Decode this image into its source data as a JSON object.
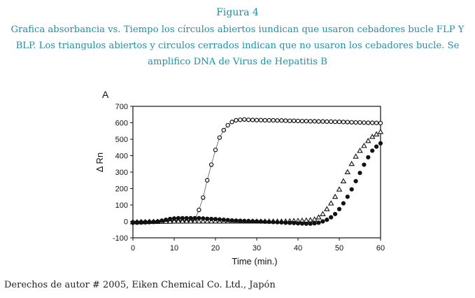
{
  "caption": {
    "figure_label": "Figura 4",
    "description": "Grafica absorbancia vs. Tiempo los círculos abiertos iundican que usaron cebadores bucle FLP Y BLP. Los triangulos abiertos y circulos cerrados indican que no usaron los cebadores bucle. Se amplifico DNA de Virus de Hepatitis B"
  },
  "copyright": "Derechos de autor # 2005, Eiken Chemical Co. Ltd., Japón",
  "chart_data": {
    "type": "scatter",
    "panel_label": "A",
    "title": "",
    "xlabel": "Time (min.)",
    "ylabel": "Δ Rn",
    "xlim": [
      0,
      60
    ],
    "ylim": [
      -100,
      700
    ],
    "xticks": [
      0,
      10,
      20,
      30,
      40,
      50,
      60
    ],
    "yticks": [
      -100,
      0,
      100,
      200,
      300,
      400,
      500,
      600,
      700
    ],
    "grid": false,
    "legend": "none",
    "series": [
      {
        "marker": "open-circle",
        "line": true,
        "x": [
          0,
          1,
          2,
          3,
          4,
          5,
          6,
          7,
          8,
          9,
          10,
          11,
          12,
          13,
          14,
          15,
          16,
          17,
          18,
          19,
          20,
          21,
          22,
          23,
          24,
          25,
          26,
          27,
          28,
          29,
          30,
          31,
          32,
          33,
          34,
          35,
          36,
          37,
          38,
          39,
          40,
          41,
          42,
          43,
          44,
          45,
          46,
          47,
          48,
          49,
          50,
          51,
          52,
          53,
          54,
          55,
          56,
          57,
          58,
          59,
          60
        ],
        "y": [
          -5,
          -5,
          -4,
          -4,
          -3,
          -3,
          -2,
          -1,
          0,
          0,
          0,
          0,
          0,
          0,
          2,
          10,
          70,
          145,
          250,
          345,
          435,
          510,
          555,
          585,
          605,
          615,
          618,
          620,
          618,
          617,
          616,
          616,
          615,
          615,
          615,
          614,
          614,
          613,
          612,
          612,
          611,
          610,
          610,
          609,
          609,
          608,
          608,
          607,
          607,
          606,
          606,
          605,
          604,
          603,
          602,
          602,
          601,
          600,
          600,
          599,
          598
        ]
      },
      {
        "marker": "open-triangle",
        "line": false,
        "x": [
          0,
          1,
          2,
          3,
          4,
          5,
          6,
          7,
          8,
          9,
          10,
          11,
          12,
          13,
          14,
          15,
          16,
          17,
          18,
          19,
          20,
          21,
          22,
          23,
          24,
          25,
          26,
          27,
          28,
          29,
          30,
          31,
          32,
          33,
          34,
          35,
          36,
          37,
          38,
          39,
          40,
          41,
          42,
          43,
          44,
          45,
          46,
          47,
          48,
          49,
          50,
          51,
          52,
          53,
          54,
          55,
          56,
          57,
          58,
          59,
          60
        ],
        "y": [
          -4,
          -4,
          -3,
          -3,
          -2,
          -2,
          -2,
          -1,
          -1,
          -1,
          0,
          0,
          0,
          0,
          0,
          0,
          0,
          0,
          0,
          0,
          0,
          0,
          0,
          0,
          0,
          0,
          0,
          0,
          0,
          0,
          0,
          0,
          0,
          0,
          0,
          0,
          0,
          1,
          2,
          3,
          4,
          5,
          6,
          8,
          12,
          25,
          45,
          75,
          110,
          150,
          195,
          245,
          300,
          350,
          395,
          430,
          460,
          490,
          515,
          530,
          545
        ]
      },
      {
        "marker": "filled-circle",
        "line": false,
        "x": [
          0,
          1,
          2,
          3,
          4,
          5,
          6,
          7,
          8,
          9,
          10,
          11,
          12,
          13,
          14,
          15,
          16,
          17,
          18,
          19,
          20,
          21,
          22,
          23,
          24,
          25,
          26,
          27,
          28,
          29,
          30,
          31,
          32,
          33,
          34,
          35,
          36,
          37,
          38,
          39,
          40,
          41,
          42,
          43,
          44,
          45,
          46,
          47,
          48,
          49,
          50,
          51,
          52,
          53,
          54,
          55,
          56,
          57,
          58,
          59,
          60
        ],
        "y": [
          -8,
          -8,
          -7,
          -6,
          -5,
          -3,
          0,
          5,
          10,
          15,
          18,
          20,
          20,
          20,
          20,
          20,
          20,
          18,
          16,
          15,
          14,
          12,
          10,
          8,
          6,
          5,
          4,
          3,
          2,
          1,
          0,
          -1,
          -2,
          -3,
          -4,
          -5,
          -6,
          -8,
          -9,
          -10,
          -12,
          -13,
          -14,
          -14,
          -12,
          -8,
          0,
          10,
          25,
          45,
          75,
          110,
          150,
          195,
          245,
          295,
          345,
          390,
          430,
          455,
          475
        ]
      }
    ]
  }
}
